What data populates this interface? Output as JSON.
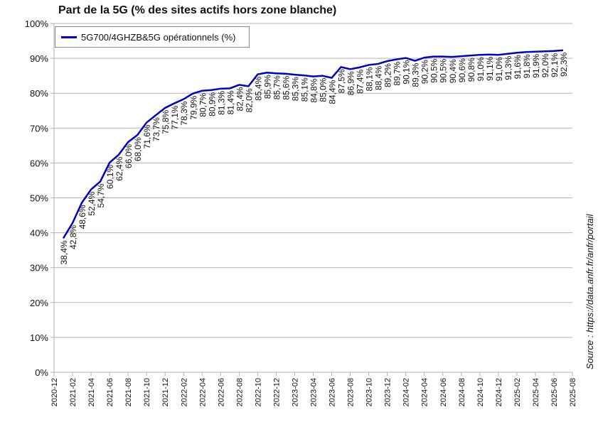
{
  "chart_data": {
    "type": "line",
    "title": "Part de la 5G (% des sites actifs hors zone blanche)",
    "source": "Source : https://data.anfr.fr/anfr/portail",
    "xlabel": "",
    "ylabel": "",
    "ylim": [
      0,
      100
    ],
    "yticks": [
      "0%",
      "10%",
      "20%",
      "30%",
      "40%",
      "50%",
      "60%",
      "70%",
      "80%",
      "90%",
      "100%"
    ],
    "xticks": [
      "2020-12",
      "2021-02",
      "2021-04",
      "2021-06",
      "2021-08",
      "2021-10",
      "2021-12",
      "2022-02",
      "2022-04",
      "2022-06",
      "2022-08",
      "2022-10",
      "2022-12",
      "2023-02",
      "2023-04",
      "2023-06",
      "2023-08",
      "2023-10",
      "2023-12",
      "2024-02",
      "2024-04",
      "2024-06",
      "2024-08",
      "2024-10",
      "2024-12",
      "2025-02",
      "2025-04",
      "2025-06",
      "2025-08"
    ],
    "grid": true,
    "legend": "top-left",
    "series": [
      {
        "name": "5G700/4GHZB&5G opérationnels (%)",
        "color": "#0000c8",
        "start": "2021-01",
        "values": [
          38.4,
          42.8,
          48.6,
          52.4,
          54.7,
          60.1,
          62.4,
          66.0,
          68.0,
          71.6,
          73.7,
          75.8,
          77.1,
          78.3,
          79.9,
          80.7,
          80.9,
          81.3,
          81.4,
          82.4,
          82.0,
          85.4,
          85.9,
          85.7,
          85.6,
          85.3,
          85.1,
          84.8,
          85.0,
          84.4,
          87.5,
          86.9,
          87.4,
          88.1,
          88.4,
          89.2,
          89.7,
          90.1,
          89.3,
          90.2,
          90.5,
          90.5,
          90.4,
          90.6,
          90.8,
          91.0,
          91.1,
          91.0,
          91.3,
          91.6,
          91.8,
          91.9,
          92.0,
          92.1,
          92.3
        ]
      }
    ]
  }
}
